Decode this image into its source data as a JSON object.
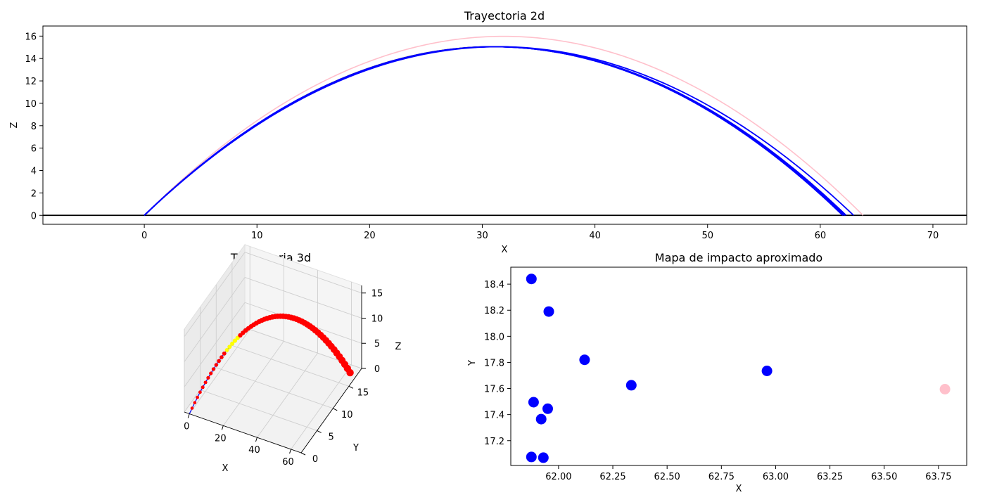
{
  "chart_data": [
    {
      "type": "line",
      "title": "Trayectoria 2d",
      "xlabel": "X",
      "ylabel": "Z",
      "xlim": [
        -9,
        73
      ],
      "ylim": [
        -0.8,
        16.9
      ],
      "xticks": [
        0,
        10,
        20,
        30,
        40,
        50,
        60,
        70
      ],
      "yticks": [
        0,
        2,
        4,
        6,
        8,
        10,
        12,
        14,
        16
      ],
      "baseline": {
        "y": 0,
        "color": "#000000"
      },
      "series": [
        {
          "color": "#ffc0cb",
          "apex_x": 31.9,
          "apex_z": 15.98,
          "end_x": 63.8
        },
        {
          "color": "#0000ff",
          "apex_x": 31.0,
          "apex_z": 15.05,
          "end_x": 62.0,
          "highlight": {
            "color": "#ffff00",
            "from_x": 14.0,
            "to_x": 30.0
          }
        },
        {
          "color": "#0000ff",
          "apex_x": 31.0,
          "apex_z": 15.05,
          "end_x": 62.0
        },
        {
          "color": "#0000ff",
          "apex_x": 31.05,
          "apex_z": 15.05,
          "end_x": 62.1
        },
        {
          "color": "#0000ff",
          "apex_x": 31.1,
          "apex_z": 15.05,
          "end_x": 62.2
        },
        {
          "color": "#0000ff",
          "apex_x": 31.15,
          "apex_z": 15.05,
          "end_x": 62.3
        },
        {
          "color": "#0000ff",
          "apex_x": 31.48,
          "apex_z": 15.05,
          "end_x": 62.96
        }
      ]
    },
    {
      "type": "scatter",
      "title": "Trayectoria 3d",
      "xlabel": "X",
      "ylabel": "Y",
      "zlabel": "Z",
      "xticks": [
        0,
        20,
        40,
        60
      ],
      "yticks": [
        0,
        5,
        10,
        15
      ],
      "zticks": [
        0,
        5,
        10,
        15
      ],
      "xlim": [
        -3,
        66
      ],
      "ylim": [
        0,
        19
      ],
      "zlim": [
        0,
        16.5
      ],
      "trajectory": {
        "end_x": 62.0,
        "end_y": 17.5,
        "apex_z": 15.05
      },
      "point_color": "#ff0000",
      "highlight_color": "#ffff00"
    },
    {
      "type": "scatter",
      "title": "Mapa de impacto aproximado",
      "xlabel": "X",
      "ylabel": "Y",
      "xlim": [
        61.78,
        63.88
      ],
      "ylim": [
        17.01,
        18.53
      ],
      "xticks": [
        62.0,
        62.25,
        62.5,
        62.75,
        63.0,
        63.25,
        63.5,
        63.75
      ],
      "yticks": [
        17.2,
        17.4,
        17.6,
        17.8,
        18.0,
        18.2,
        18.4
      ],
      "points": [
        {
          "x": 61.875,
          "y": 18.44,
          "color": "#0000ff"
        },
        {
          "x": 61.955,
          "y": 18.19,
          "color": "#0000ff"
        },
        {
          "x": 62.12,
          "y": 17.82,
          "color": "#0000ff"
        },
        {
          "x": 62.335,
          "y": 17.625,
          "color": "#0000ff"
        },
        {
          "x": 62.96,
          "y": 17.735,
          "color": "#0000ff"
        },
        {
          "x": 61.885,
          "y": 17.495,
          "color": "#0000ff"
        },
        {
          "x": 61.95,
          "y": 17.445,
          "color": "#0000ff"
        },
        {
          "x": 61.92,
          "y": 17.365,
          "color": "#0000ff"
        },
        {
          "x": 61.875,
          "y": 17.075,
          "color": "#0000ff"
        },
        {
          "x": 61.93,
          "y": 17.07,
          "color": "#0000ff"
        },
        {
          "x": 63.78,
          "y": 17.595,
          "color": "#ffc0cb"
        }
      ]
    }
  ]
}
